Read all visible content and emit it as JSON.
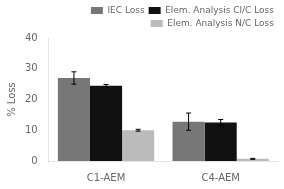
{
  "chart_data": {
    "type": "bar",
    "categories": [
      "C1-AEM",
      "C4-AEM"
    ],
    "series": [
      {
        "name": "IEC Loss",
        "color": "#777777",
        "values": [
          27.0,
          12.8
        ],
        "errors": [
          2.0,
          2.8
        ]
      },
      {
        "name": "Elem. Analysis Cl/C Loss",
        "color": "#111111",
        "values": [
          24.5,
          12.5
        ],
        "errors": [
          0.4,
          1.0
        ]
      },
      {
        "name": "Elem. Analysis N/C Loss",
        "color": "#bbbbbb",
        "values": [
          10.0,
          0.7
        ],
        "errors": [
          0.3,
          0.15
        ]
      }
    ],
    "ylabel": "% Loss",
    "ylim": [
      0,
      40
    ],
    "yticks": [
      0,
      10,
      20,
      30,
      40
    ],
    "grid": false,
    "legend": "upper right"
  }
}
